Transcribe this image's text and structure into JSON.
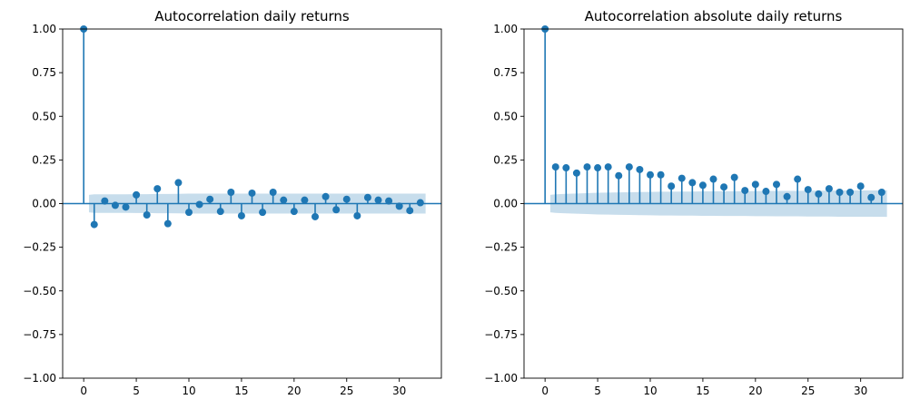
{
  "chart_data": [
    {
      "type": "stem",
      "title": "Autocorrelation daily returns",
      "xlim": [
        -2,
        34
      ],
      "ylim": [
        -1.0,
        1.0
      ],
      "xticks": [
        0,
        5,
        10,
        15,
        20,
        25,
        30
      ],
      "yticks": [
        -1.0,
        -0.75,
        -0.5,
        -0.25,
        0.0,
        0.25,
        0.5,
        0.75,
        1.0
      ],
      "ytick_labels": [
        "−1.00",
        "−0.75",
        "−0.50",
        "−0.25",
        "0.00",
        "0.25",
        "0.50",
        "0.75",
        "1.00"
      ],
      "grid": false,
      "color": "#1f77b4",
      "band_color": "#1f77b4",
      "x": [
        0,
        1,
        2,
        3,
        4,
        5,
        6,
        7,
        8,
        9,
        10,
        11,
        12,
        13,
        14,
        15,
        16,
        17,
        18,
        19,
        20,
        21,
        22,
        23,
        24,
        25,
        26,
        27,
        28,
        29,
        30,
        31,
        32
      ],
      "values": [
        1.0,
        -0.12,
        0.015,
        -0.01,
        -0.02,
        0.05,
        -0.065,
        0.085,
        -0.115,
        0.12,
        -0.05,
        -0.005,
        0.025,
        -0.045,
        0.065,
        -0.07,
        0.06,
        -0.05,
        0.065,
        0.02,
        -0.045,
        0.02,
        -0.075,
        0.04,
        -0.035,
        0.025,
        -0.07,
        0.035,
        0.02,
        0.015,
        -0.015,
        -0.04,
        0.005
      ],
      "confidence_band": {
        "x": [
          0.5,
          1,
          2,
          3,
          4,
          5,
          6,
          7,
          8,
          9,
          10,
          11,
          12,
          13,
          14,
          15,
          16,
          17,
          18,
          19,
          20,
          21,
          22,
          23,
          24,
          25,
          26,
          27,
          28,
          29,
          30,
          31,
          32.5
        ],
        "upper": [
          0.05,
          0.053,
          0.053,
          0.053,
          0.053,
          0.054,
          0.054,
          0.055,
          0.055,
          0.056,
          0.057,
          0.057,
          0.057,
          0.057,
          0.057,
          0.057,
          0.057,
          0.057,
          0.057,
          0.057,
          0.057,
          0.057,
          0.057,
          0.057,
          0.057,
          0.057,
          0.057,
          0.057,
          0.057,
          0.057,
          0.057,
          0.057,
          0.057
        ],
        "lower": [
          -0.05,
          -0.053,
          -0.053,
          -0.053,
          -0.053,
          -0.054,
          -0.054,
          -0.055,
          -0.055,
          -0.056,
          -0.057,
          -0.057,
          -0.057,
          -0.057,
          -0.057,
          -0.057,
          -0.057,
          -0.057,
          -0.057,
          -0.057,
          -0.057,
          -0.057,
          -0.057,
          -0.057,
          -0.057,
          -0.057,
          -0.057,
          -0.057,
          -0.057,
          -0.057,
          -0.057,
          -0.057,
          -0.057
        ]
      }
    },
    {
      "type": "stem",
      "title": "Autocorrelation absolute daily returns",
      "xlim": [
        -2,
        34
      ],
      "ylim": [
        -1.0,
        1.0
      ],
      "xticks": [
        0,
        5,
        10,
        15,
        20,
        25,
        30
      ],
      "yticks": [
        -1.0,
        -0.75,
        -0.5,
        -0.25,
        0.0,
        0.25,
        0.5,
        0.75,
        1.0
      ],
      "ytick_labels": [
        "−1.00",
        "−0.75",
        "−0.50",
        "−0.25",
        "0.00",
        "0.25",
        "0.50",
        "0.75",
        "1.00"
      ],
      "grid": false,
      "color": "#1f77b4",
      "band_color": "#1f77b4",
      "x": [
        0,
        1,
        2,
        3,
        4,
        5,
        6,
        7,
        8,
        9,
        10,
        11,
        12,
        13,
        14,
        15,
        16,
        17,
        18,
        19,
        20,
        21,
        22,
        23,
        24,
        25,
        26,
        27,
        28,
        29,
        30,
        31,
        32
      ],
      "values": [
        1.0,
        0.21,
        0.205,
        0.175,
        0.21,
        0.205,
        0.21,
        0.16,
        0.21,
        0.195,
        0.165,
        0.165,
        0.1,
        0.145,
        0.12,
        0.105,
        0.14,
        0.095,
        0.15,
        0.075,
        0.11,
        0.07,
        0.11,
        0.04,
        0.14,
        0.08,
        0.055,
        0.085,
        0.065,
        0.065,
        0.1,
        0.035,
        0.065
      ],
      "confidence_band": {
        "x": [
          0.5,
          1,
          2,
          3,
          4,
          5,
          6,
          7,
          8,
          9,
          10,
          11,
          12,
          13,
          14,
          15,
          16,
          17,
          18,
          19,
          20,
          21,
          22,
          23,
          24,
          25,
          26,
          27,
          28,
          29,
          30,
          31,
          32.5
        ],
        "upper": [
          0.05,
          0.053,
          0.056,
          0.058,
          0.06,
          0.062,
          0.063,
          0.064,
          0.065,
          0.066,
          0.067,
          0.068,
          0.068,
          0.069,
          0.069,
          0.07,
          0.07,
          0.071,
          0.071,
          0.071,
          0.072,
          0.072,
          0.073,
          0.073,
          0.073,
          0.074,
          0.074,
          0.074,
          0.075,
          0.075,
          0.075,
          0.075,
          0.076
        ],
        "lower": [
          -0.05,
          -0.053,
          -0.056,
          -0.058,
          -0.06,
          -0.062,
          -0.063,
          -0.064,
          -0.065,
          -0.066,
          -0.067,
          -0.068,
          -0.068,
          -0.069,
          -0.069,
          -0.07,
          -0.07,
          -0.071,
          -0.071,
          -0.071,
          -0.072,
          -0.072,
          -0.073,
          -0.073,
          -0.073,
          -0.074,
          -0.074,
          -0.074,
          -0.075,
          -0.075,
          -0.075,
          -0.075,
          -0.076
        ]
      }
    }
  ]
}
